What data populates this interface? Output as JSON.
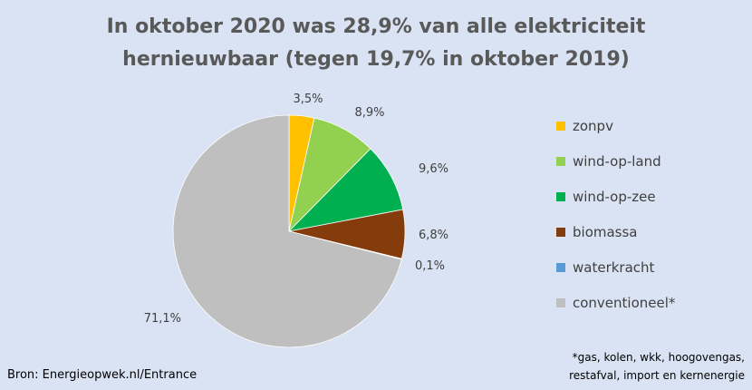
{
  "chart_data": {
    "type": "pie",
    "title_lines": [
      "In oktober 2020 was 28,9% van alle elektriciteit",
      "hernieuwbaar (tegen 19,7% in oktober 2019)"
    ],
    "slices": [
      {
        "name": "zonpv",
        "value": 3.5,
        "label": "3,5%",
        "color": "#ffc000"
      },
      {
        "name": "wind-op-land",
        "value": 8.9,
        "label": "8,9%",
        "color": "#92d050"
      },
      {
        "name": "wind-op-zee",
        "value": 9.6,
        "label": "9,6%",
        "color": "#00b050"
      },
      {
        "name": "biomassa",
        "value": 6.8,
        "label": "6,8%",
        "color": "#843c0c"
      },
      {
        "name": "waterkracht",
        "value": 0.1,
        "label": "0,1%",
        "color": "#5b9bd5"
      },
      {
        "name": "conventioneel*",
        "value": 71.1,
        "label": "71,1%",
        "color": "#bfbfbf"
      }
    ],
    "legend_position": "right"
  },
  "source": "Bron: Energieopwek.nl/Entrance",
  "footnote_lines": [
    "*gas, kolen, wkk, hoogovengas,",
    "restafval, import en kernenergie"
  ]
}
